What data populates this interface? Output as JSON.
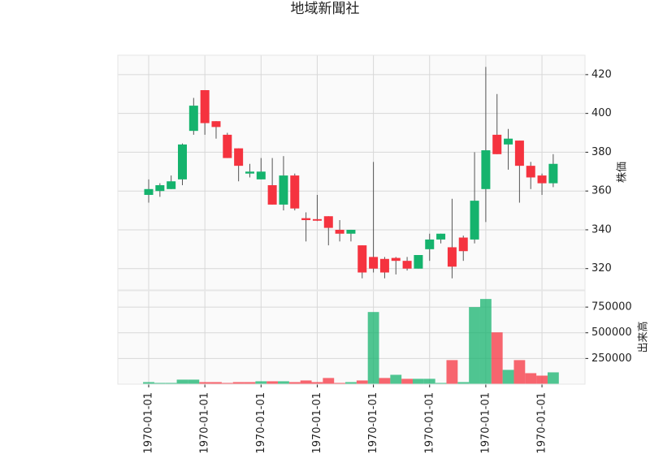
{
  "chart_data": {
    "type": "candlestick",
    "title": "地域新聞社",
    "categories": [
      "1970-01-01",
      null,
      null,
      null,
      null,
      "1970-01-01",
      null,
      null,
      null,
      null,
      "1970-01-01",
      null,
      null,
      null,
      null,
      "1970-01-01",
      null,
      null,
      null,
      null,
      "1970-01-01",
      null,
      null,
      null,
      null,
      "1970-01-01",
      null,
      null,
      null,
      null,
      "1970-01-01",
      null,
      null,
      null,
      null,
      "1970-01-01",
      null
    ],
    "open": [
      358,
      360,
      361,
      366,
      391,
      412,
      396,
      389,
      382,
      369,
      366,
      363,
      353,
      368,
      346,
      345.5,
      347,
      340,
      338,
      332,
      326,
      325,
      325.5,
      324,
      320,
      330,
      335,
      331,
      336,
      335,
      361,
      389,
      384,
      386,
      373,
      368,
      364
    ],
    "high": [
      366,
      364,
      368,
      384.5,
      408,
      412,
      396,
      390,
      382,
      374,
      377,
      377,
      378,
      369,
      349,
      358,
      347,
      345,
      340,
      332,
      375,
      326,
      326,
      326,
      327,
      338,
      338,
      356,
      337,
      380,
      424,
      410,
      392,
      386,
      375,
      369,
      379
    ],
    "low": [
      354,
      357,
      361,
      363,
      389,
      389,
      387,
      377,
      365,
      367,
      366,
      353,
      350,
      350,
      334,
      344.5,
      332,
      334,
      334,
      315,
      318,
      315,
      317,
      319,
      320,
      324,
      333,
      315,
      324,
      333,
      344,
      379,
      371,
      354,
      361,
      358,
      362
    ],
    "close": [
      361,
      363,
      365,
      384,
      404,
      395,
      393,
      377,
      373,
      370,
      370,
      353,
      368,
      351,
      345,
      344.7,
      341,
      338,
      340,
      318,
      320,
      318,
      324,
      320,
      327,
      335,
      338,
      321,
      329,
      355,
      381,
      379,
      387,
      373,
      367,
      364,
      374
    ],
    "ylim": [
      309,
      430
    ],
    "yticks": [
      320,
      340,
      360,
      380,
      400,
      420
    ],
    "ylabel": "株価",
    "volume": {
      "label": "出来高",
      "values": [
        20000,
        12000,
        12000,
        44000,
        44000,
        20000,
        20000,
        12000,
        20000,
        20000,
        28000,
        28000,
        28000,
        20000,
        36000,
        20000,
        60000,
        12000,
        20000,
        36000,
        702000,
        60000,
        91000,
        52000,
        52000,
        52000,
        12000,
        234000,
        20000,
        750000,
        829000,
        504000,
        139000,
        234000,
        107000,
        83000,
        115000
      ],
      "ylim": [
        0,
        909000
      ],
      "yticks": [
        250000,
        500000,
        750000
      ]
    },
    "up_color": "#15b36d",
    "down_color": "#f5333f",
    "grid": true
  }
}
